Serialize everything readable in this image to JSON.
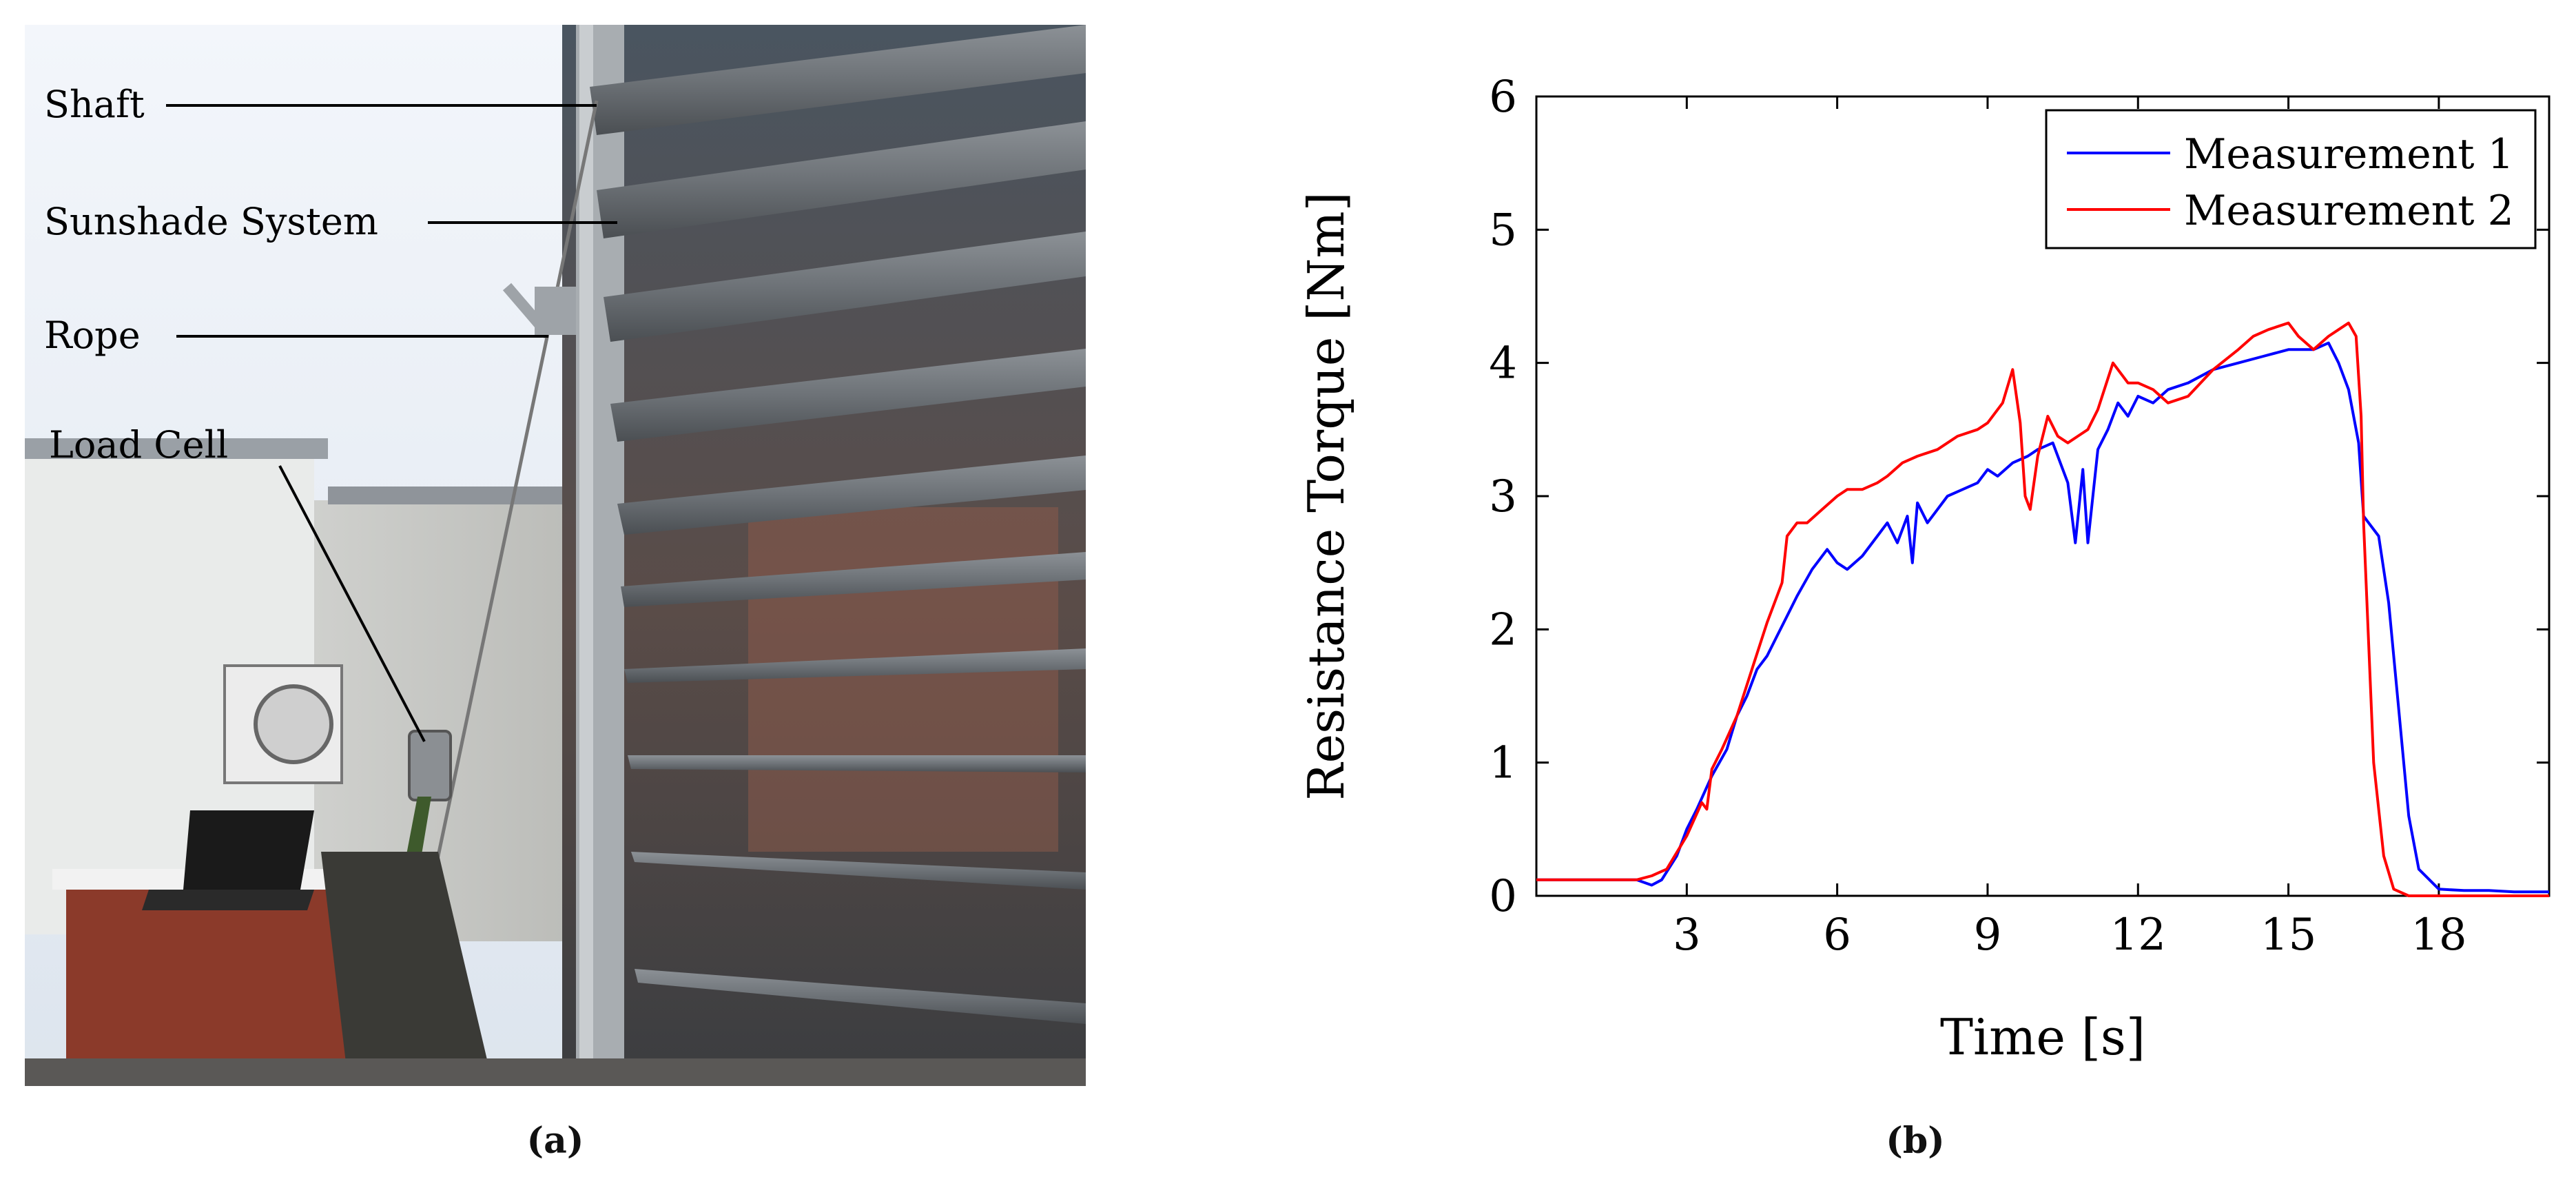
{
  "panel_a": {
    "label": "(a)",
    "annotations": [
      "Shaft",
      "Sunshade System",
      "Rope",
      "Load Cell"
    ]
  },
  "panel_b": {
    "label": "(b)"
  },
  "chart_data": {
    "type": "line",
    "xlabel": "Time [s]",
    "ylabel": "Resistance Torque [Nm]",
    "xlim": [
      0,
      20.2
    ],
    "ylim": [
      0,
      6
    ],
    "xticks": [
      3,
      6,
      9,
      12,
      15,
      18
    ],
    "yticks": [
      0,
      1,
      2,
      3,
      4,
      5,
      6
    ],
    "grid": false,
    "legend": "top-right",
    "series": [
      {
        "name": "Measurement 1",
        "color": "#0000ff",
        "x": [
          0,
          0.5,
          1,
          1.5,
          2,
          2.3,
          2.5,
          2.8,
          3.0,
          3.2,
          3.5,
          3.8,
          4.0,
          4.2,
          4.4,
          4.6,
          4.8,
          5.0,
          5.2,
          5.5,
          5.8,
          6.0,
          6.2,
          6.5,
          6.8,
          7.0,
          7.2,
          7.4,
          7.5,
          7.6,
          7.8,
          8.0,
          8.2,
          8.5,
          8.8,
          9.0,
          9.2,
          9.5,
          9.8,
          10.0,
          10.3,
          10.6,
          10.75,
          10.9,
          11.0,
          11.2,
          11.4,
          11.6,
          11.8,
          12.0,
          12.3,
          12.6,
          13.0,
          13.5,
          14.0,
          14.5,
          15.0,
          15.5,
          15.8,
          16.0,
          16.2,
          16.4,
          16.5,
          16.6,
          16.8,
          17.0,
          17.2,
          17.4,
          17.6,
          18.0,
          18.5,
          19.0,
          19.5,
          20.0,
          20.2
        ],
        "y": [
          0.12,
          0.12,
          0.12,
          0.12,
          0.12,
          0.08,
          0.12,
          0.3,
          0.5,
          0.65,
          0.9,
          1.1,
          1.35,
          1.5,
          1.7,
          1.8,
          1.95,
          2.1,
          2.25,
          2.45,
          2.6,
          2.5,
          2.45,
          2.55,
          2.7,
          2.8,
          2.65,
          2.85,
          2.5,
          2.95,
          2.8,
          2.9,
          3.0,
          3.05,
          3.1,
          3.2,
          3.15,
          3.25,
          3.3,
          3.35,
          3.4,
          3.1,
          2.65,
          3.2,
          2.65,
          3.35,
          3.5,
          3.7,
          3.6,
          3.75,
          3.7,
          3.8,
          3.85,
          3.95,
          4.0,
          4.05,
          4.1,
          4.1,
          4.15,
          4.0,
          3.8,
          3.4,
          2.85,
          2.8,
          2.7,
          2.2,
          1.4,
          0.6,
          0.2,
          0.05,
          0.04,
          0.04,
          0.03,
          0.03,
          0.03
        ]
      },
      {
        "name": "Measurement 2",
        "color": "#ff0000",
        "x": [
          0,
          0.5,
          1,
          1.5,
          2,
          2.3,
          2.6,
          3.0,
          3.3,
          3.4,
          3.5,
          3.7,
          4.0,
          4.3,
          4.6,
          4.9,
          5.0,
          5.2,
          5.4,
          5.7,
          6.0,
          6.2,
          6.5,
          6.8,
          7.0,
          7.3,
          7.6,
          8.0,
          8.4,
          8.8,
          9.0,
          9.3,
          9.5,
          9.65,
          9.75,
          9.85,
          10.0,
          10.2,
          10.4,
          10.6,
          10.8,
          11.0,
          11.2,
          11.5,
          11.8,
          12.0,
          12.3,
          12.6,
          13.0,
          13.5,
          14.0,
          14.3,
          14.6,
          15.0,
          15.2,
          15.5,
          15.8,
          16.0,
          16.2,
          16.35,
          16.45,
          16.5,
          16.6,
          16.7,
          16.9,
          17.1,
          17.4,
          18.0,
          18.5,
          19.0,
          20.2
        ],
        "y": [
          0.12,
          0.12,
          0.12,
          0.12,
          0.12,
          0.15,
          0.2,
          0.45,
          0.7,
          0.65,
          0.95,
          1.1,
          1.35,
          1.7,
          2.05,
          2.35,
          2.7,
          2.8,
          2.8,
          2.9,
          3.0,
          3.05,
          3.05,
          3.1,
          3.15,
          3.25,
          3.3,
          3.35,
          3.45,
          3.5,
          3.55,
          3.7,
          3.95,
          3.55,
          3.0,
          2.9,
          3.3,
          3.6,
          3.45,
          3.4,
          3.45,
          3.5,
          3.65,
          4.0,
          3.85,
          3.85,
          3.8,
          3.7,
          3.75,
          3.95,
          4.1,
          4.2,
          4.25,
          4.3,
          4.2,
          4.1,
          4.2,
          4.25,
          4.3,
          4.2,
          3.6,
          2.8,
          1.9,
          1.0,
          0.3,
          0.05,
          0.0,
          0.0,
          0.0,
          0.0,
          0.0
        ]
      }
    ]
  }
}
